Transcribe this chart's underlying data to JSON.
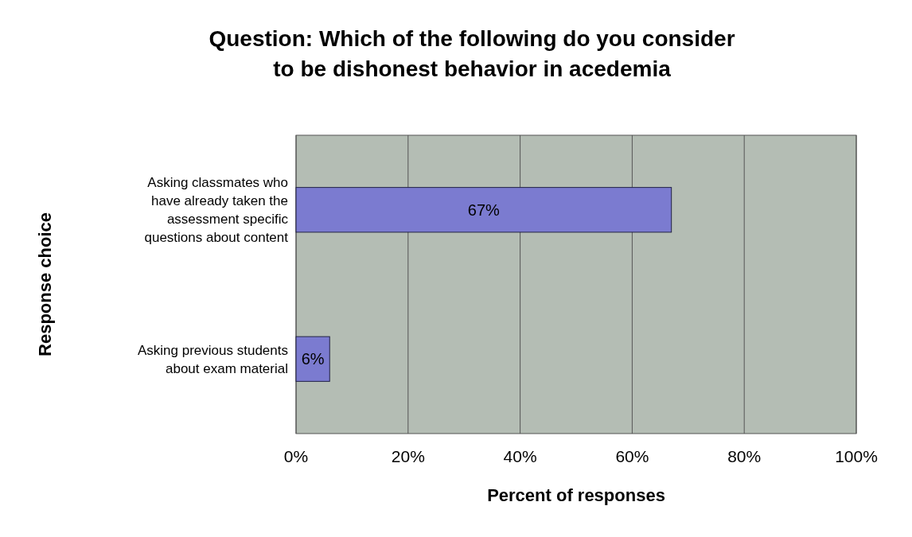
{
  "chart_data": {
    "type": "bar",
    "orientation": "horizontal",
    "title": "Question: Which of the following do you consider to be dishonest behavior in acedemia",
    "xlabel": "Percent of responses",
    "ylabel": "Response choice",
    "categories": [
      "Asking classmates who have already taken the assessment specific questions about content",
      "Asking previous students about exam material"
    ],
    "values": [
      67,
      6
    ],
    "value_labels": [
      "67%",
      "6%"
    ],
    "color": "#7b7bd0",
    "xlim": [
      0,
      100
    ],
    "xticks": [
      {
        "value": 0,
        "label": "0%"
      },
      {
        "value": 20,
        "label": "20%"
      },
      {
        "value": 40,
        "label": "40%"
      },
      {
        "value": 60,
        "label": "60%"
      },
      {
        "value": 80,
        "label": "80%"
      },
      {
        "value": 100,
        "label": "100%"
      }
    ],
    "grid": "x"
  }
}
